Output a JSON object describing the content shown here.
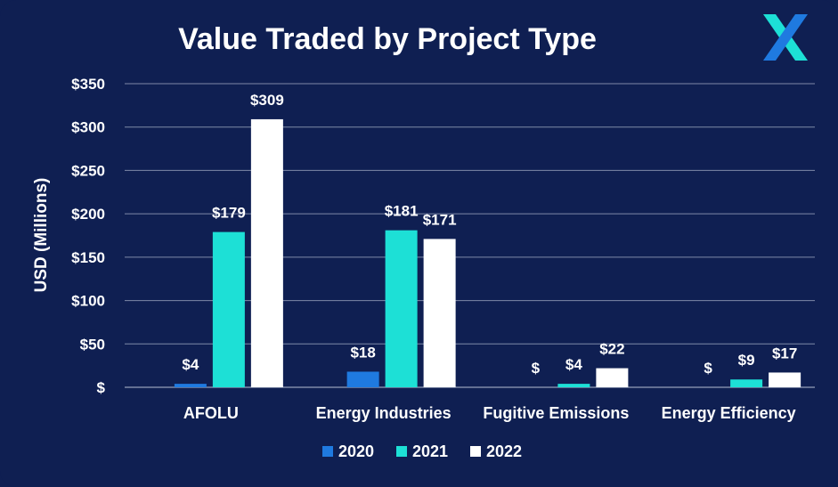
{
  "colors": {
    "background": "#0f1f52",
    "grid": "#7f8aa8",
    "series_2020": "#1f7ae0",
    "series_2021": "#1de0d6",
    "series_2022": "#ffffff",
    "logo_left": "#1de0d6",
    "logo_right": "#1f7ae0"
  },
  "logo": {
    "icon": "x-logo-icon"
  },
  "chart_data": {
    "type": "bar",
    "title": "Value Traded by Project Type",
    "ylabel": "USD (Millions)",
    "xlabel": "",
    "ylim": [
      0,
      350
    ],
    "yticks": [
      0,
      50,
      100,
      150,
      200,
      250,
      300,
      350
    ],
    "ytick_labels": [
      "$",
      "$50",
      "$100",
      "$150",
      "$200",
      "$250",
      "$300",
      "$350"
    ],
    "grid": true,
    "legend_position": "bottom-center",
    "categories": [
      "AFOLU",
      "Energy Industries",
      "Fugitive Emissions",
      "Energy Efficiency"
    ],
    "series": [
      {
        "name": "2020",
        "values": [
          4,
          18,
          0,
          0
        ],
        "labels": [
          "$4",
          "$18",
          "$",
          "$"
        ]
      },
      {
        "name": "2021",
        "values": [
          179,
          181,
          4,
          9
        ],
        "labels": [
          "$179",
          "$181",
          "$4",
          "$9"
        ]
      },
      {
        "name": "2022",
        "values": [
          309,
          171,
          22,
          17
        ],
        "labels": [
          "$309",
          "$171",
          "$22",
          "$17"
        ]
      }
    ]
  }
}
